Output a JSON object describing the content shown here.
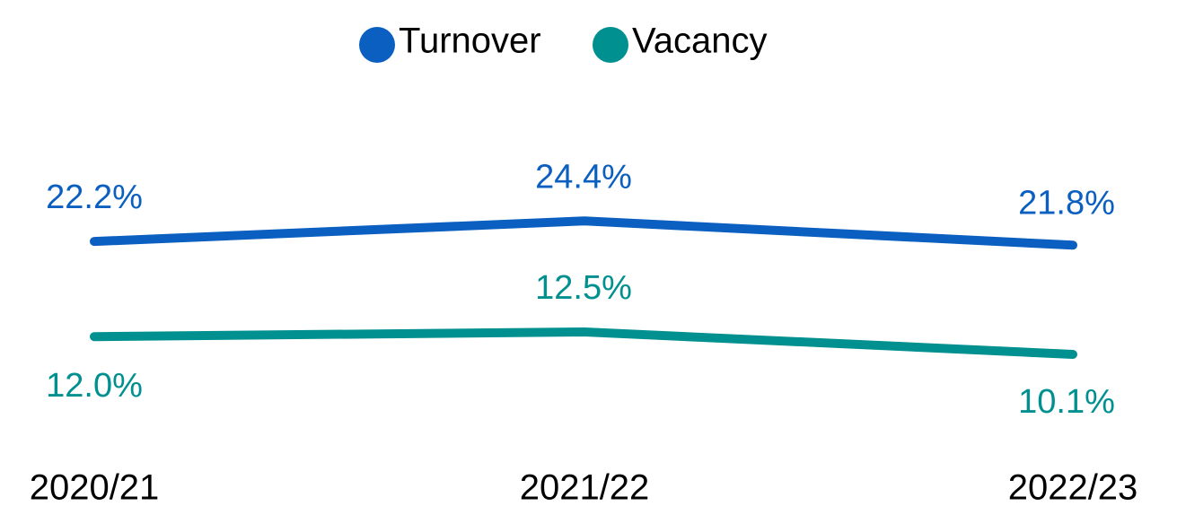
{
  "chart_data": {
    "type": "line",
    "categories": [
      "2020/21",
      "2021/22",
      "2022/23"
    ],
    "series": [
      {
        "name": "Turnover",
        "color": "#0b5fc0",
        "values": [
          22.2,
          24.4,
          21.8
        ],
        "value_labels": [
          "22.2%",
          "24.4%",
          "21.8%"
        ]
      },
      {
        "name": "Vacancy",
        "color": "#00908f",
        "values": [
          12.0,
          12.5,
          10.1
        ],
        "value_labels": [
          "12.0%",
          "12.5%",
          "10.1%"
        ]
      }
    ],
    "ylim": [
      0,
      40
    ],
    "legend": "top"
  }
}
